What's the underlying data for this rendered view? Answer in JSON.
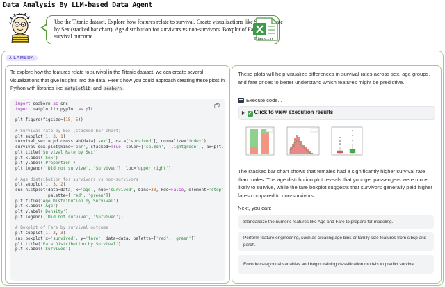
{
  "header": {
    "title": "Data Analysis By LLM-based Data Agent",
    "user_prompt": "Use the Titanic dataset. Explore how features relate to survival. Create visualizations like Survival rate by Sex (stacked bar chart). Age distribution for survivors vs non-survivors. Boxplot of Fare by survival outcome",
    "file_name": "Titanic.csv",
    "file_icon": "excel-file-icon"
  },
  "agent": {
    "badge": "LAMBDA",
    "colors": {
      "frame": "#9fce7e",
      "badge_bg": "#e9e6fb",
      "badge_text": "#6a5cc4"
    }
  },
  "left": {
    "intro_1": "To explore how the features relate to survival in the Titanic dataset, we can create several visualizations that give insights into the data. Here's how you could approach creating these plots in Python with libraries like ",
    "lib_1": "matplotlib",
    "intro_and": " and ",
    "lib_2": "seaborn",
    "intro_end": "."
  },
  "right": {
    "summary_1": "These plots will help visualize differences in survival rates across sex, age groups, and fare prices to better understand which features might be predictive.",
    "execute_label": "Execute code...",
    "results_label": "Click to view execution results",
    "summary_2": "The stacked bar chart shows that females had a significantly higher survival rate than males. The age distribution plot reveals that younger passengers were more likely to survive, while the fare boxplot suggests that survivors generally paid higher fares compared to non-survivors.",
    "next_label": "Next, you can:",
    "suggestions": [
      "Standardize the numeric features like Age and Fare to prepare for modeling.",
      "Perform feature engineering, such as creating age bins or family size features from sibsp and parch.",
      "Encode categorical variables and begin training classification models to predict survival."
    ]
  }
}
